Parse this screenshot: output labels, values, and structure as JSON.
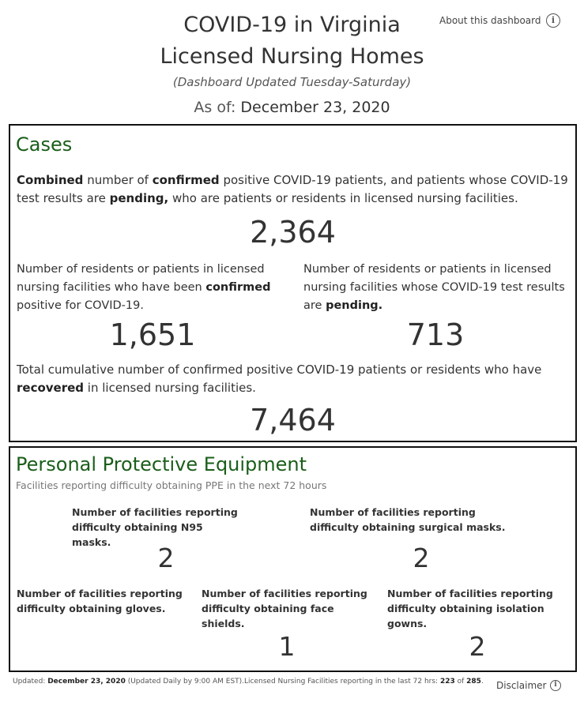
{
  "header": {
    "title_line1": "COVID-19 in Virginia",
    "title_line2": "Licensed Nursing Homes",
    "subtitle": "(Dashboard Updated Tuesday-Saturday)",
    "as_of_label": "As of:",
    "as_of_date": "December 23, 2020",
    "about_link": "About this dashboard"
  },
  "cases": {
    "title": "Cases",
    "combined": {
      "p1": "Combined",
      "p2": " number of ",
      "p3": "confirmed",
      "p4": " positive COVID-19 patients, and patients whose COVID-19 test results are ",
      "p5": "pending,",
      "p6": " who are patients or residents in licensed nursing facilities.",
      "value": "2,364"
    },
    "confirmed": {
      "p1": "Number of residents or patients in licensed nursing facilities who have been ",
      "p2": "confirmed",
      "p3": " positive for COVID-19.",
      "value": "1,651"
    },
    "pending": {
      "p1": "Number of residents or patients in licensed nursing facilities whose COVID-19 test results are ",
      "p2": "pending.",
      "value": "713"
    },
    "recovered": {
      "p1": "Total cumulative number of confirmed positive COVID-19 patients or residents who have ",
      "p2": "recovered",
      "p3": " in licensed nursing facilities.",
      "value": "7,464"
    }
  },
  "ppe": {
    "title": "Personal Protective Equipment",
    "subtitle": "Facilities reporting difficulty obtaining PPE in the next 72 hours",
    "n95": {
      "label": "Number of facilities reporting difficulty obtaining N95 masks.",
      "value": "2"
    },
    "surgical": {
      "label": "Number of facilities reporting difficulty obtaining surgical masks.",
      "value": "2"
    },
    "gloves": {
      "label": "Number of facilities reporting difficulty obtaining gloves.",
      "value": ""
    },
    "face_shields": {
      "label": "Number of facilities reporting difficulty obtaining face shields.",
      "value": "1"
    },
    "gowns": {
      "label": "Number of facilities reporting difficulty obtaining isolation gowns.",
      "value": "2"
    }
  },
  "footer": {
    "updated_label": "Updated: ",
    "updated_date": "December 23, 2020",
    "mid_text": " (Updated Daily by 9:00 AM EST).Licensed Nursing Facilities reporting in the last 72 hrs: ",
    "reporting": "223",
    "of_text": " of ",
    "total": "285",
    "end": ".",
    "disclaimer": "Disclaimer"
  },
  "icons": {
    "info": "info-icon"
  }
}
